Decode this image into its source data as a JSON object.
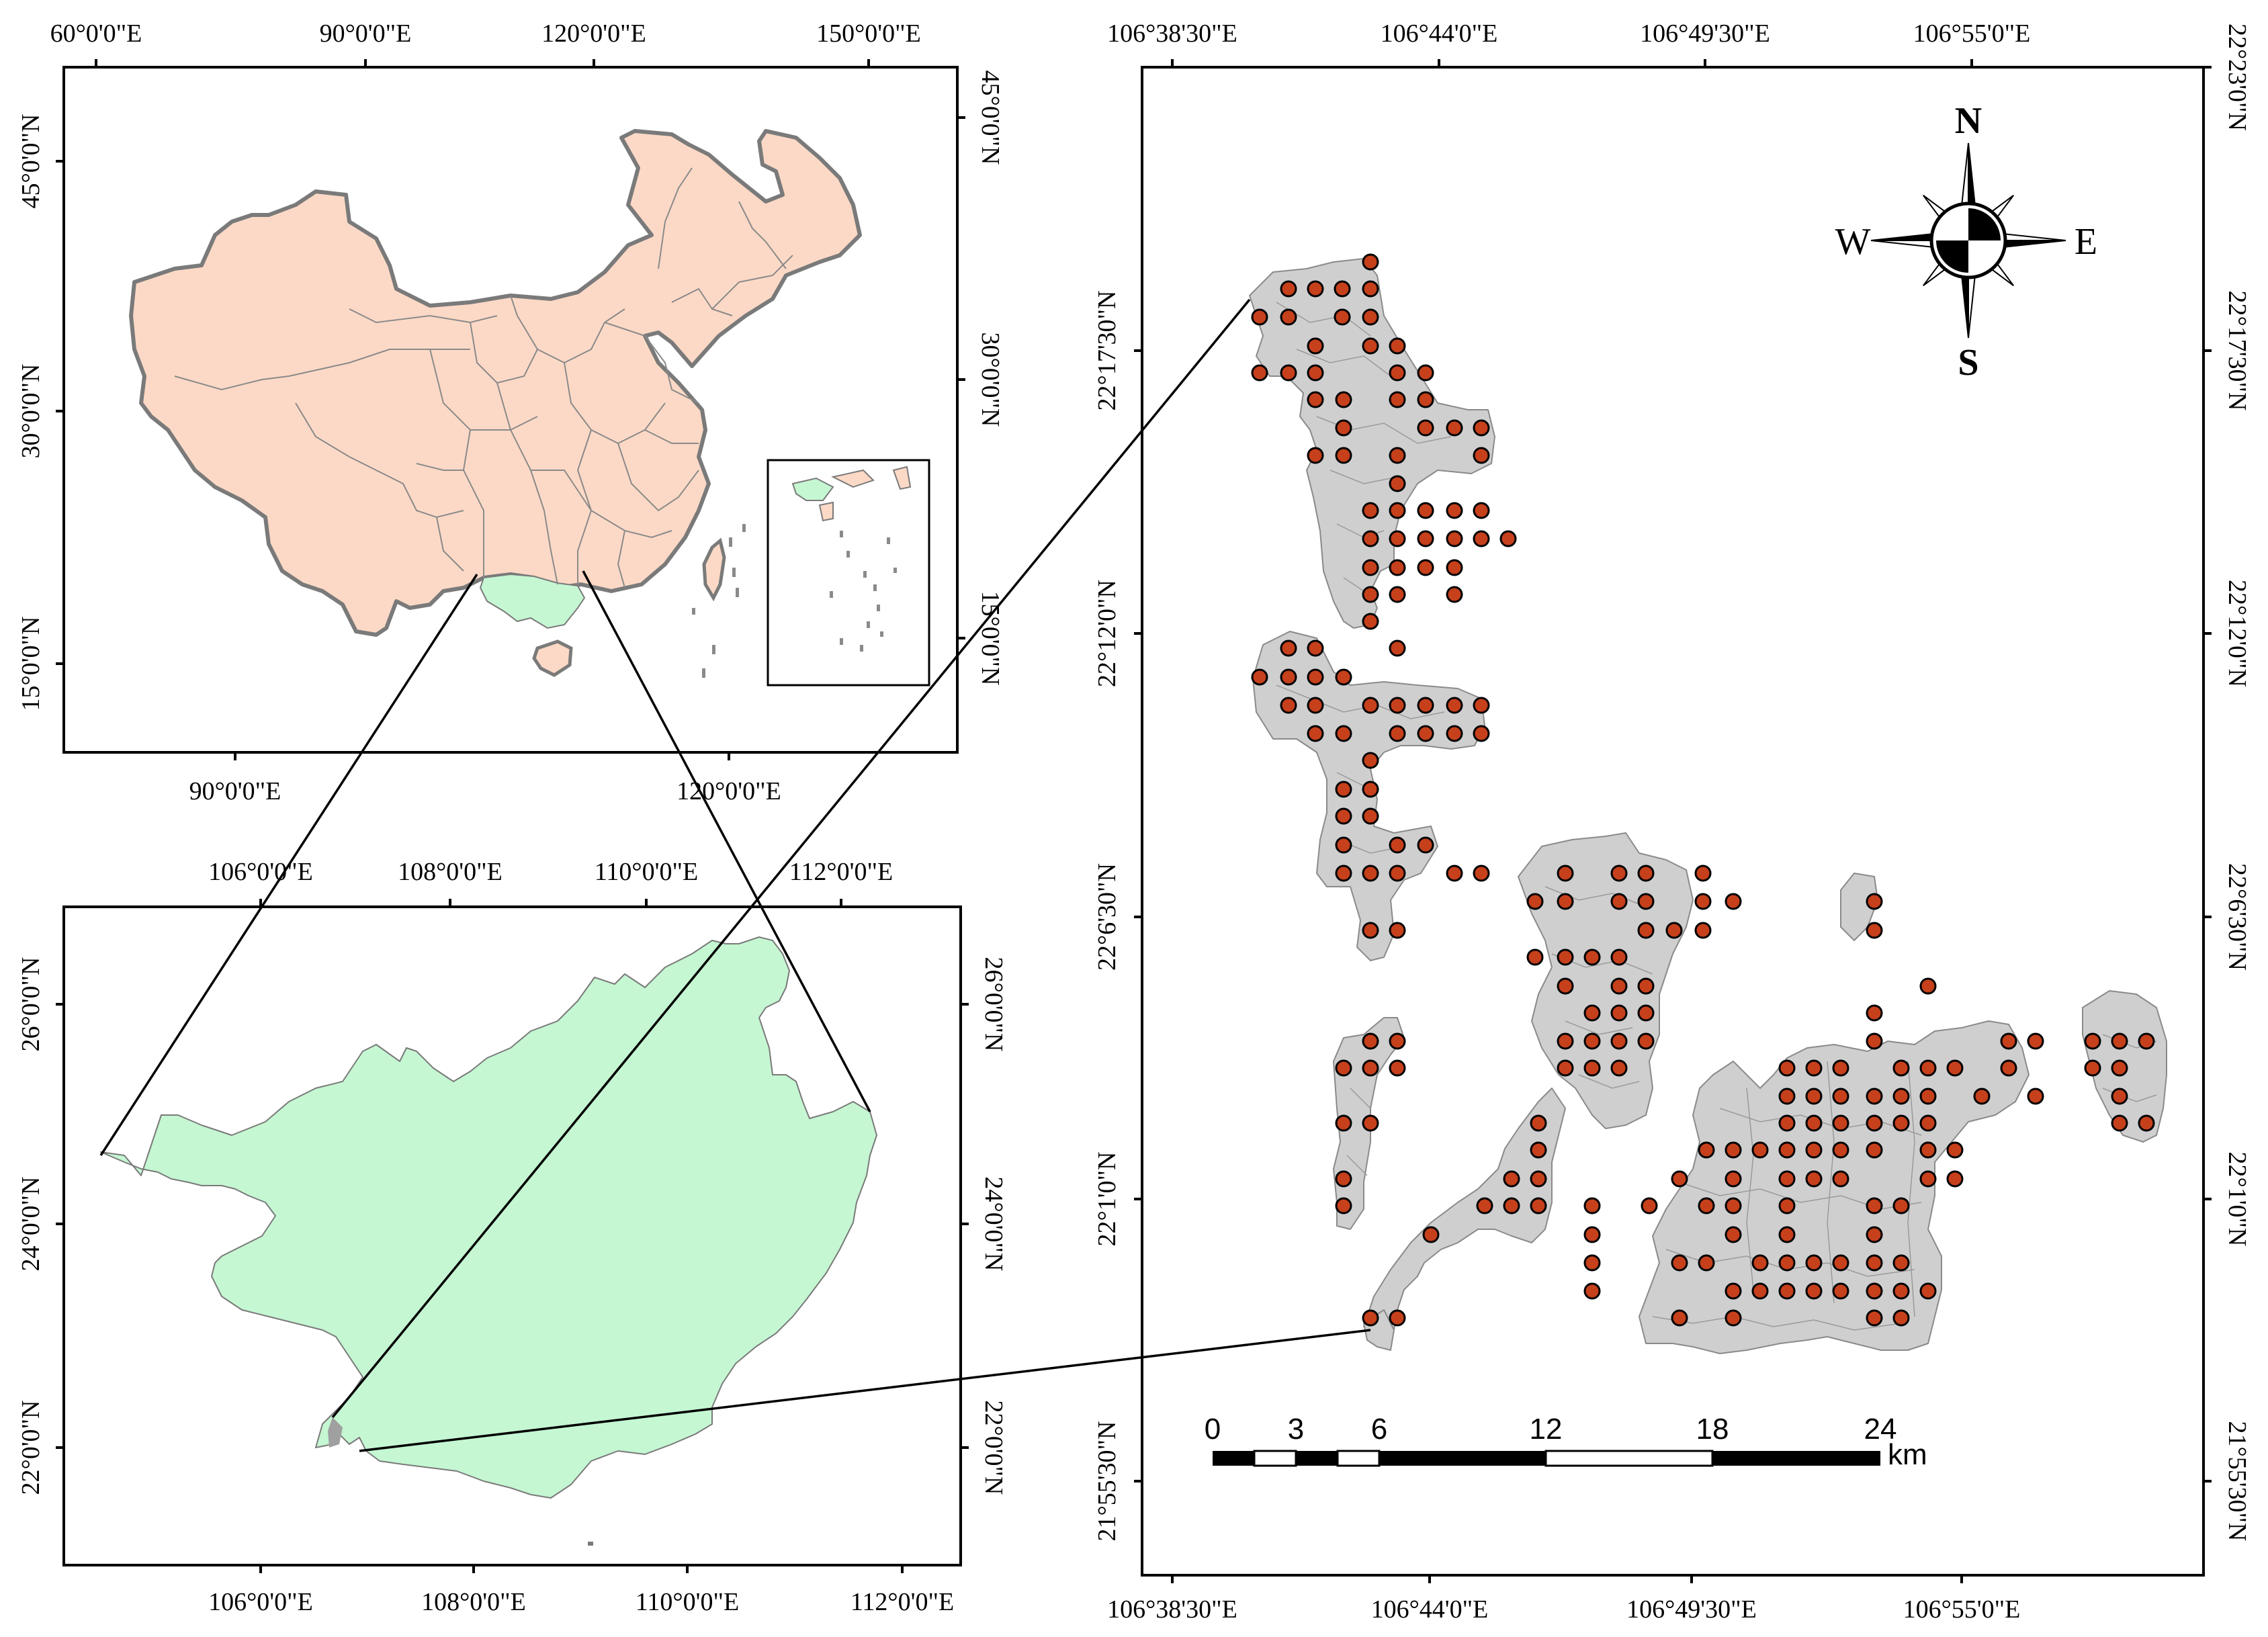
{
  "panel_china": {
    "top_ticks": [
      "60°0'0\"E",
      "90°0'0\"E",
      "120°0'0\"E",
      "150°0'0\"E"
    ],
    "bottom_ticks": [
      "90°0'0\"E",
      "120°0'0\"E"
    ],
    "left_ticks": [
      "45°0'0\"N",
      "30°0'0\"N",
      "15°0'0\"N"
    ],
    "right_ticks": [
      "45°0'0\"N",
      "30°0'0\"N",
      "15°0'0\"N"
    ]
  },
  "panel_guangxi": {
    "top_ticks": [
      "106°0'0\"E",
      "108°0'0\"E",
      "110°0'0\"E",
      "112°0'0\"E"
    ],
    "bottom_ticks": [
      "106°0'0\"E",
      "108°0'0\"E",
      "110°0'0\"E",
      "112°0'0\"E"
    ],
    "left_ticks": [
      "26°0'0\"N",
      "24°0'0\"N",
      "22°0'0\"N"
    ],
    "right_ticks": [
      "26°0'0\"N",
      "24°0'0\"N",
      "22°0'0\"N"
    ]
  },
  "panel_study": {
    "top_ticks": [
      "106°38'30\"E",
      "106°44'0\"E",
      "106°49'30\"E",
      "106°55'0\"E"
    ],
    "bottom_ticks": [
      "106°38'30\"E",
      "106°44'0\"E",
      "106°49'30\"E",
      "106°55'0\"E"
    ],
    "left_ticks": [
      "22°17'30\"N",
      "22°12'0\"N",
      "22°6'30\"N",
      "22°1'0\"N",
      "21°55'30\"N"
    ],
    "right_ticks": [
      "22°23'0\"N",
      "22°17'30\"N",
      "22°12'0\"N",
      "22°6'30\"N",
      "22°1'0\"N",
      "21°55'30\"N"
    ]
  },
  "compass": {
    "n": "N",
    "s": "S",
    "e": "E",
    "w": "W"
  },
  "scale_bar": {
    "labels": [
      "0",
      "3",
      "6",
      "12",
      "18",
      "24"
    ],
    "unit": "km"
  },
  "colors": {
    "china_fill": "#fcd9c6",
    "guangxi_fill": "#c5f7d2",
    "study_area_fill": "#cfcfcf",
    "sample_point": "#c6401b",
    "border": "#7a7a7a"
  }
}
